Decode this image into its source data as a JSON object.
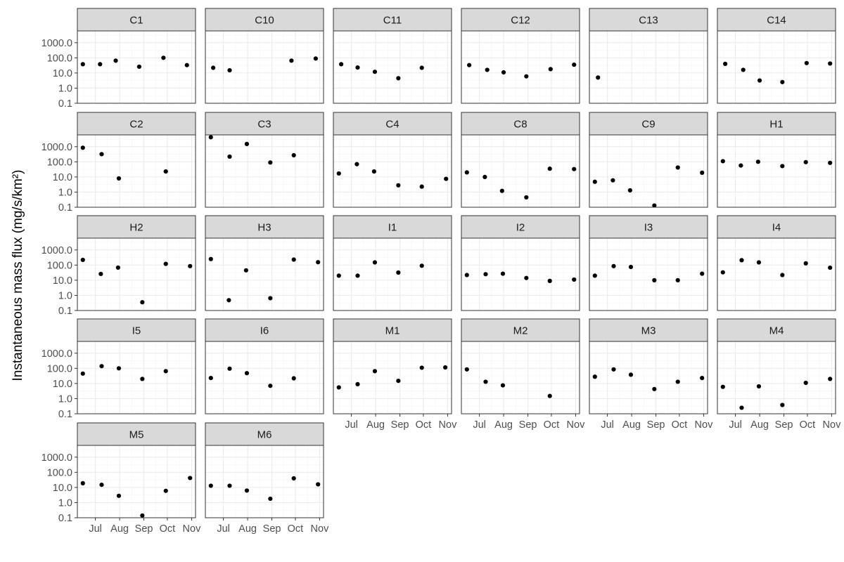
{
  "chart_data": {
    "type": "scatter",
    "facet_layout": "wrap",
    "columns": 6,
    "title": "",
    "xlabel": "",
    "ylabel": "Instantaneous mass flux (mg/s/km²)",
    "y_scale": "log10",
    "ylim": [
      0.1,
      6000
    ],
    "y_ticks": [
      0.1,
      1.0,
      10.0,
      100.0,
      1000.0
    ],
    "y_tick_labels": [
      "0.1",
      "1.0",
      "10.0",
      "100.0",
      "1000.0"
    ],
    "xlim": [
      "2021-06-08",
      "2021-11-06"
    ],
    "x_ticks": [
      "2021-07-01",
      "2021-08-01",
      "2021-09-01",
      "2021-10-01",
      "2021-11-01"
    ],
    "x_tick_labels": [
      "Jul",
      "Aug",
      "Sep",
      "Oct",
      "Nov"
    ],
    "grid": true,
    "point_color": "#000000",
    "panels": [
      {
        "name": "C1",
        "x": [
          "2021-06-15",
          "2021-07-07",
          "2021-07-27",
          "2021-08-26",
          "2021-09-26",
          "2021-10-26"
        ],
        "y": [
          38,
          38,
          65,
          26,
          100,
          33
        ]
      },
      {
        "name": "C10",
        "x": [
          "2021-06-18",
          "2021-07-09",
          "2021-09-26",
          "2021-10-27"
        ],
        "y": [
          22,
          15,
          65,
          90
        ]
      },
      {
        "name": "C11",
        "x": [
          "2021-06-18",
          "2021-07-09",
          "2021-07-31",
          "2021-08-30",
          "2021-09-29"
        ],
        "y": [
          38,
          23,
          12,
          4.5,
          22
        ]
      },
      {
        "name": "C12",
        "x": [
          "2021-06-18",
          "2021-07-11",
          "2021-08-01",
          "2021-08-30",
          "2021-09-30",
          "2021-10-30"
        ],
        "y": [
          33,
          16,
          11,
          6,
          18,
          35
        ]
      },
      {
        "name": "C13",
        "x": [
          "2021-06-19"
        ],
        "y": [
          5
        ]
      },
      {
        "name": "C14",
        "x": [
          "2021-06-18",
          "2021-07-11",
          "2021-08-01",
          "2021-08-30",
          "2021-09-30",
          "2021-10-30"
        ],
        "y": [
          40,
          16,
          3.2,
          2.5,
          45,
          42
        ]
      },
      {
        "name": "C2",
        "x": [
          "2021-06-15",
          "2021-07-09",
          "2021-07-31",
          "2021-09-29"
        ],
        "y": [
          850,
          320,
          8,
          23
        ]
      },
      {
        "name": "C3",
        "x": [
          "2021-06-15",
          "2021-07-09",
          "2021-07-31",
          "2021-08-30",
          "2021-09-29"
        ],
        "y": [
          4200,
          220,
          1500,
          90,
          270
        ]
      },
      {
        "name": "C4",
        "x": [
          "2021-06-15",
          "2021-07-08",
          "2021-07-30",
          "2021-08-30",
          "2021-09-29",
          "2021-10-30"
        ],
        "y": [
          17,
          70,
          23,
          2.8,
          2.3,
          7.5
        ]
      },
      {
        "name": "C8",
        "x": [
          "2021-06-15",
          "2021-07-08",
          "2021-07-30",
          "2021-08-30",
          "2021-09-29",
          "2021-10-30"
        ],
        "y": [
          20,
          10,
          1.2,
          0.45,
          35,
          33
        ]
      },
      {
        "name": "C9",
        "x": [
          "2021-06-15",
          "2021-07-08",
          "2021-07-30",
          "2021-08-30",
          "2021-09-29",
          "2021-10-30"
        ],
        "y": [
          4.8,
          6,
          1.3,
          0.13,
          42,
          19
        ]
      },
      {
        "name": "H1",
        "x": [
          "2021-06-15",
          "2021-07-08",
          "2021-07-30",
          "2021-08-30",
          "2021-09-29",
          "2021-10-30"
        ],
        "y": [
          110,
          57,
          100,
          52,
          95,
          85
        ]
      },
      {
        "name": "H2",
        "x": [
          "2021-06-15",
          "2021-07-08",
          "2021-07-30",
          "2021-08-30",
          "2021-09-29",
          "2021-10-30"
        ],
        "y": [
          220,
          26,
          68,
          0.35,
          120,
          85
        ]
      },
      {
        "name": "H3",
        "x": [
          "2021-06-15",
          "2021-07-08",
          "2021-07-30",
          "2021-08-30",
          "2021-09-29",
          "2021-10-30"
        ],
        "y": [
          250,
          0.48,
          45,
          0.65,
          230,
          155
        ]
      },
      {
        "name": "I1",
        "x": [
          "2021-06-15",
          "2021-07-09",
          "2021-07-31",
          "2021-08-30",
          "2021-09-29"
        ],
        "y": [
          20,
          20,
          150,
          32,
          90
        ]
      },
      {
        "name": "I2",
        "x": [
          "2021-06-15",
          "2021-07-09",
          "2021-07-31",
          "2021-08-30",
          "2021-09-29",
          "2021-10-30"
        ],
        "y": [
          22,
          25,
          27,
          14,
          9,
          11
        ]
      },
      {
        "name": "I3",
        "x": [
          "2021-06-15",
          "2021-07-09",
          "2021-07-31",
          "2021-08-30",
          "2021-09-29",
          "2021-10-30"
        ],
        "y": [
          20,
          85,
          75,
          10,
          10,
          27
        ]
      },
      {
        "name": "I4",
        "x": [
          "2021-06-15",
          "2021-07-09",
          "2021-07-31",
          "2021-08-30",
          "2021-09-29",
          "2021-10-30"
        ],
        "y": [
          33,
          210,
          150,
          22,
          130,
          67
        ]
      },
      {
        "name": "I5",
        "x": [
          "2021-06-15",
          "2021-07-09",
          "2021-07-31",
          "2021-08-30",
          "2021-09-29"
        ],
        "y": [
          45,
          140,
          100,
          20,
          65
        ]
      },
      {
        "name": "I6",
        "x": [
          "2021-06-15",
          "2021-07-09",
          "2021-07-31",
          "2021-08-30",
          "2021-09-29"
        ],
        "y": [
          23,
          95,
          48,
          7,
          22
        ]
      },
      {
        "name": "M1",
        "x": [
          "2021-06-15",
          "2021-07-09",
          "2021-07-31",
          "2021-08-30",
          "2021-09-29",
          "2021-10-29"
        ],
        "y": [
          5.5,
          9,
          65,
          15,
          110,
          115
        ]
      },
      {
        "name": "M2",
        "x": [
          "2021-06-15",
          "2021-07-09",
          "2021-07-31",
          "2021-09-29"
        ],
        "y": [
          85,
          13,
          7.5,
          1.5
        ]
      },
      {
        "name": "M3",
        "x": [
          "2021-06-15",
          "2021-07-09",
          "2021-07-31",
          "2021-08-30",
          "2021-09-29",
          "2021-10-30"
        ],
        "y": [
          28,
          85,
          38,
          4.3,
          13,
          23
        ]
      },
      {
        "name": "M4",
        "x": [
          "2021-06-15",
          "2021-07-09",
          "2021-07-31",
          "2021-08-30",
          "2021-09-29",
          "2021-10-30"
        ],
        "y": [
          6,
          0.25,
          6.5,
          0.38,
          11,
          20
        ]
      },
      {
        "name": "M5",
        "x": [
          "2021-06-15",
          "2021-07-09",
          "2021-07-31",
          "2021-08-30",
          "2021-09-29",
          "2021-10-30"
        ],
        "y": [
          19,
          15,
          2.8,
          0.14,
          6,
          42
        ]
      },
      {
        "name": "M6",
        "x": [
          "2021-06-15",
          "2021-07-09",
          "2021-07-31",
          "2021-08-30",
          "2021-09-29",
          "2021-10-30"
        ],
        "y": [
          13,
          13,
          6.2,
          1.8,
          40,
          16
        ]
      }
    ]
  }
}
